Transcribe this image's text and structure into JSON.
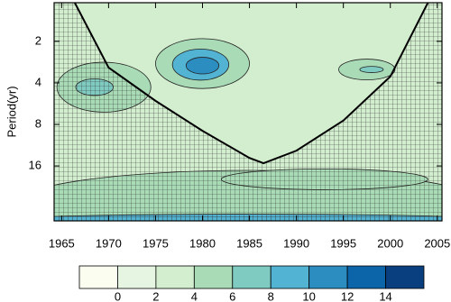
{
  "chart_data": {
    "type": "wavelet",
    "y_label": "Period(yr)",
    "xlim": [
      1964.2,
      2005.5
    ],
    "xticks": [
      1965,
      1970,
      1975,
      1980,
      1985,
      1990,
      1995,
      2000,
      2005
    ],
    "ylim": [
      1.05,
      40
    ],
    "yticks": [
      2,
      4,
      8,
      16
    ],
    "y_log": true,
    "y_reversed": true,
    "background_level": 3,
    "blobs": [
      {
        "x": 1985,
        "period": 30,
        "width": 50,
        "octaves": 1.6,
        "level": 5
      },
      {
        "x": 1985,
        "period": 39,
        "width": 50,
        "octaves": 0.25,
        "level": 9
      },
      {
        "x": 1993,
        "period": 20,
        "width": 22,
        "octaves": 0.5,
        "level": 5
      },
      {
        "x": 1969.5,
        "period": 4.3,
        "width": 10,
        "octaves": 1.2,
        "level": 5
      },
      {
        "x": 1968.5,
        "period": 4.3,
        "width": 4,
        "octaves": 0.4,
        "level": 7
      },
      {
        "x": 1980,
        "period": 2.9,
        "width": 10,
        "octaves": 1.2,
        "level": 5
      },
      {
        "x": 1979.8,
        "period": 2.95,
        "width": 6,
        "octaves": 0.75,
        "level": 9
      },
      {
        "x": 1980,
        "period": 3.0,
        "width": 3.5,
        "octaves": 0.4,
        "level": 11
      },
      {
        "x": 1997.5,
        "period": 3.2,
        "width": 6,
        "octaves": 0.5,
        "level": 5
      },
      {
        "x": 1998,
        "period": 3.2,
        "width": 2.5,
        "octaves": 0.15,
        "level": 7
      }
    ],
    "coi": {
      "x": [
        1966.4,
        1970,
        1975,
        1980,
        1985,
        1986.5,
        1990,
        1995,
        2000,
        2004
      ],
      "period": [
        1.05,
        3.1,
        5.4,
        8.9,
        14,
        15.3,
        12.4,
        7.5,
        3.6,
        1.05
      ]
    },
    "colorbar": {
      "levels": [
        0,
        2,
        4,
        6,
        8,
        10,
        12,
        14
      ],
      "colors": [
        "#fbfdf0",
        "#e6f5e1",
        "#d3eecf",
        "#a9dcb6",
        "#7fcbc1",
        "#52b3d3",
        "#2c8dc0",
        "#0b65a8",
        "#0a3f7f"
      ]
    }
  }
}
